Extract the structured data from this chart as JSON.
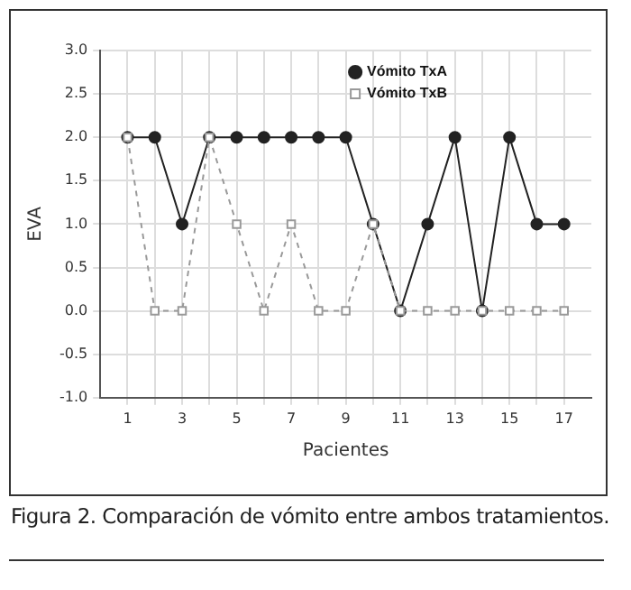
{
  "chart_data": {
    "type": "line",
    "xlabel": "Pacientes",
    "ylabel": "EVA",
    "annotations": [
      "Figura 2. Comparación de vómito entre ambos tratamientos."
    ],
    "x": [
      1,
      2,
      3,
      4,
      5,
      6,
      7,
      8,
      9,
      10,
      11,
      12,
      13,
      14,
      15,
      16,
      17
    ],
    "series": [
      {
        "name": "Vómito TxA",
        "color": "#222222",
        "values": [
          2,
          2,
          1,
          2,
          2,
          2,
          2,
          2,
          2,
          1,
          0,
          1,
          2,
          0,
          2,
          1,
          1
        ],
        "marker": "circle",
        "line_style": "solid"
      },
      {
        "name": "Vómito TxB",
        "color": "#999999",
        "values": [
          2,
          0,
          0,
          2,
          1,
          0,
          1,
          0,
          0,
          1,
          0,
          0,
          0,
          0,
          0,
          0,
          0
        ],
        "marker": "square",
        "line_style": "dashed"
      }
    ],
    "xlim": [
      0,
      18
    ],
    "xticks": [
      1,
      {
        "value": 2,
        "label": null
      },
      3,
      {
        "value": 4,
        "label": null
      },
      5,
      {
        "value": 6,
        "label": null
      },
      7,
      {
        "value": 8,
        "label": null
      },
      9,
      {
        "value": 10,
        "label": null
      },
      11,
      {
        "value": 12,
        "label": null
      },
      13,
      {
        "value": 14,
        "label": null
      },
      15,
      {
        "value": 16,
        "label": null
      },
      17
    ],
    "ylim": [
      -1,
      3
    ],
    "yticks": [
      {
        "value": -1,
        "label": "-1.0"
      },
      {
        "value": -0.5,
        "label": "-0.5"
      },
      {
        "value": 0,
        "label": "0.0"
      },
      {
        "value": 0.5,
        "label": "0.5"
      },
      {
        "value": 1,
        "label": "1.0"
      },
      {
        "value": 1.5,
        "label": "1.5"
      },
      {
        "value": 2,
        "label": "2.0"
      },
      {
        "value": 2.5,
        "label": "2.5"
      },
      {
        "value": 3,
        "label": "3.0"
      }
    ],
    "grid": true,
    "legend": "top right"
  }
}
